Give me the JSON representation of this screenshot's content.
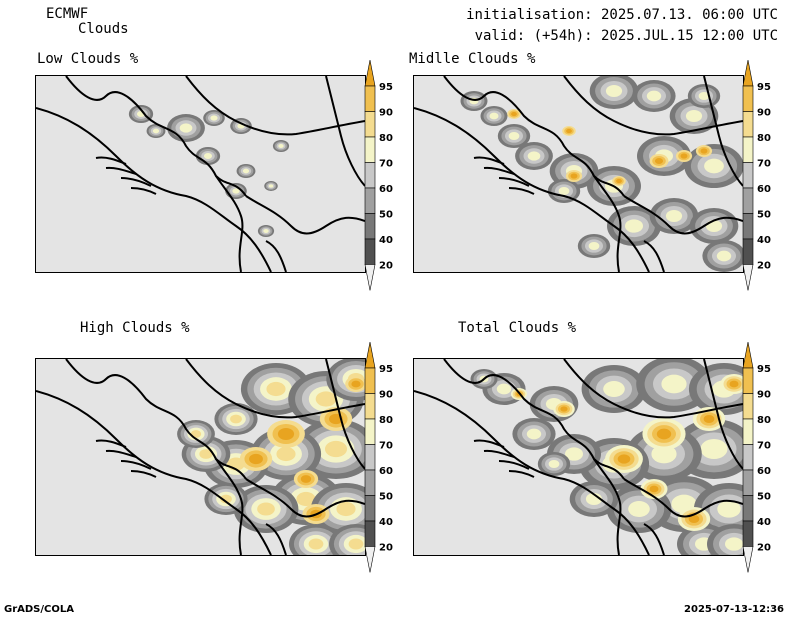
{
  "header": {
    "model": "ECMWF",
    "product": "Clouds",
    "init": "initialisation: 2025.07.13. 06:00 UTC",
    "valid": "valid: (+54h): 2025.JUL.15 12:00 UTC"
  },
  "panels": [
    {
      "title": "Low Clouds %"
    },
    {
      "title": "Midlle Clouds %"
    },
    {
      "title": "High Clouds %"
    },
    {
      "title": "Total Clouds %"
    }
  ],
  "colorbar": {
    "levels": [
      "95",
      "90",
      "80",
      "70",
      "60",
      "50",
      "40",
      "20"
    ],
    "colors": [
      "#e8a420",
      "#f0c050",
      "#f4dc90",
      "#f4f4c8",
      "#c8c8c8",
      "#a0a0a0",
      "#787878",
      "#505050",
      "#f0f0f0"
    ]
  },
  "footer": {
    "left": "GrADS/COLA",
    "right": "2025-07-13-12:36"
  }
}
